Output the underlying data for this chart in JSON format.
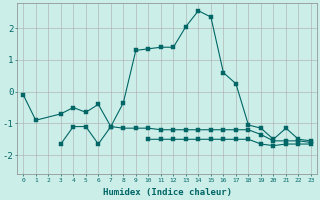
{
  "xlabel": "Humidex (Indice chaleur)",
  "ylabel": "",
  "background_color": "#cceee8",
  "grid_color": "#aaaaaa",
  "line_color": "#006666",
  "xlim": [
    -0.5,
    23.5
  ],
  "ylim": [
    -2.6,
    2.8
  ],
  "xticks": [
    0,
    1,
    2,
    3,
    4,
    5,
    6,
    7,
    8,
    9,
    10,
    11,
    12,
    13,
    14,
    15,
    16,
    17,
    18,
    19,
    20,
    21,
    22,
    23
  ],
  "yticks": [
    -2,
    -1,
    0,
    1,
    2
  ],
  "curve1_x": [
    0,
    1,
    3,
    4,
    5,
    6,
    7,
    8,
    9,
    10,
    11,
    12,
    13,
    14,
    15,
    16,
    17,
    18,
    19,
    20,
    21,
    22,
    23
  ],
  "curve1_y": [
    -0.1,
    -0.9,
    -0.7,
    -0.5,
    -0.65,
    -0.4,
    -1.1,
    -0.35,
    1.3,
    1.35,
    1.4,
    1.4,
    2.05,
    2.55,
    2.35,
    0.6,
    0.25,
    -1.05,
    -1.15,
    -1.5,
    -1.15,
    -1.5,
    -1.55
  ],
  "curve2_x": [
    3,
    4,
    5,
    6,
    7,
    8,
    9,
    10,
    11,
    12,
    13,
    14,
    15,
    16,
    17,
    18,
    19,
    20,
    21,
    22,
    23
  ],
  "curve2_y": [
    -1.65,
    -1.1,
    -1.1,
    -1.65,
    -1.1,
    -1.15,
    -1.15,
    -1.15,
    -1.2,
    -1.2,
    -1.2,
    -1.2,
    -1.2,
    -1.2,
    -1.2,
    -1.2,
    -1.35,
    -1.55,
    -1.55,
    -1.55,
    -1.6
  ],
  "curve3_x": [
    10,
    11,
    12,
    13,
    14,
    15,
    16,
    17,
    18,
    19,
    20,
    21,
    22,
    23
  ],
  "curve3_y": [
    -1.5,
    -1.5,
    -1.5,
    -1.5,
    -1.5,
    -1.5,
    -1.5,
    -1.5,
    -1.5,
    -1.65,
    -1.7,
    -1.65,
    -1.65,
    -1.65
  ]
}
